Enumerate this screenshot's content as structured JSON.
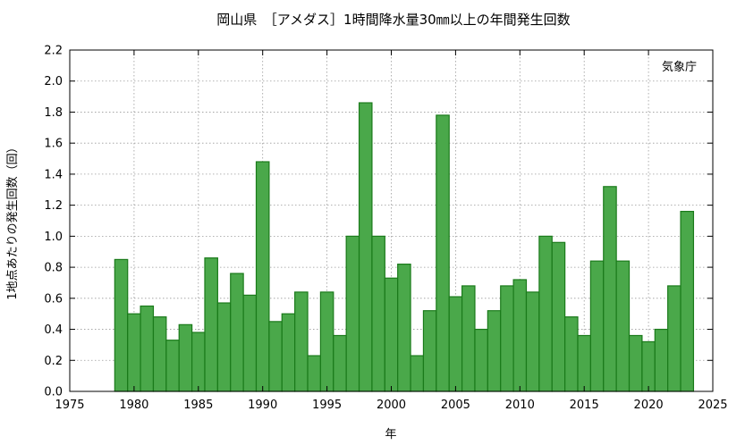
{
  "chart_data": {
    "type": "bar",
    "title": "岡山県　［アメダス］1時間降水量30㎜以上の年間発生回数",
    "xlabel": "年",
    "ylabel": "1地点あたりの発生回数（回）",
    "annotation": "気象庁",
    "xlim": [
      1975,
      2025
    ],
    "ylim": [
      0,
      2.2
    ],
    "x_ticks": [
      1975,
      1980,
      1985,
      1990,
      1995,
      2000,
      2005,
      2010,
      2015,
      2020,
      2025
    ],
    "y_ticks": [
      0.0,
      0.2,
      0.4,
      0.6,
      0.8,
      1.0,
      1.2,
      1.4,
      1.6,
      1.8,
      2.0,
      2.2
    ],
    "grid": true,
    "colors": {
      "bar_fill": "#4aa84a",
      "bar_stroke": "#1a7a1a",
      "grid": "#9a9a9a"
    },
    "x": [
      1979,
      1980,
      1981,
      1982,
      1983,
      1984,
      1985,
      1986,
      1987,
      1988,
      1989,
      1990,
      1991,
      1992,
      1993,
      1994,
      1995,
      1996,
      1997,
      1998,
      1999,
      2000,
      2001,
      2002,
      2003,
      2004,
      2005,
      2006,
      2007,
      2008,
      2009,
      2010,
      2011,
      2012,
      2013,
      2014,
      2015,
      2016,
      2017,
      2018,
      2019,
      2020,
      2021,
      2022,
      2023
    ],
    "values": [
      0.85,
      0.5,
      0.55,
      0.48,
      0.33,
      0.43,
      0.38,
      0.86,
      0.57,
      0.76,
      0.62,
      1.48,
      0.45,
      0.5,
      0.64,
      0.23,
      0.64,
      0.36,
      1.0,
      1.86,
      1.0,
      0.73,
      0.82,
      0.23,
      0.52,
      1.78,
      0.61,
      0.68,
      0.4,
      0.52,
      0.68,
      0.72,
      0.64,
      1.0,
      0.96,
      0.48,
      0.36,
      0.84,
      1.32,
      0.84,
      0.36,
      0.32,
      0.4,
      0.68,
      1.16
    ]
  }
}
